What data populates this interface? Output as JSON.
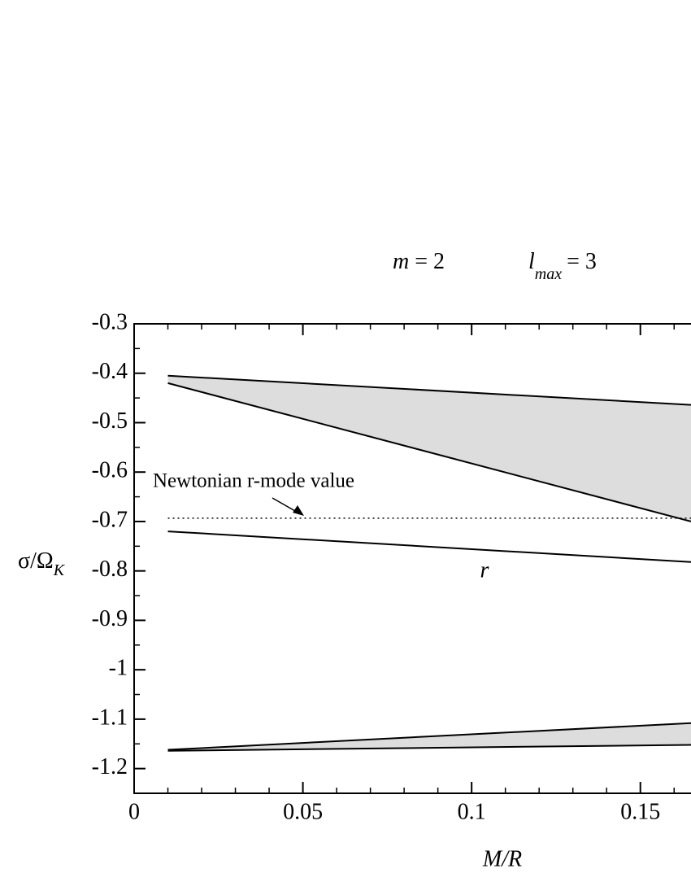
{
  "chart_data": {
    "type": "line",
    "title": [
      "m",
      "= 2",
      "l",
      "max",
      "= 3"
    ],
    "xlabel": "M/R",
    "ylabel": [
      "σ/Ω",
      "K"
    ],
    "xlim": [
      0,
      0.165
    ],
    "ylim": [
      -1.25,
      -0.3
    ],
    "xticks": [
      0,
      0.05,
      0.1,
      0.15
    ],
    "xticks_minor": [
      0.01,
      0.02,
      0.03,
      0.04,
      0.06,
      0.07,
      0.08,
      0.09,
      0.11,
      0.12,
      0.13,
      0.14,
      0.16
    ],
    "yticks": [
      -0.3,
      -0.4,
      -0.5,
      -0.6,
      -0.7,
      -0.8,
      -0.9,
      -1,
      -1.1,
      -1.2
    ],
    "yticks_minor": [
      -0.35,
      -0.45,
      -0.55,
      -0.65,
      -0.75,
      -0.85,
      -0.95,
      -1.05,
      -1.15,
      -1.25
    ],
    "x": [
      0.01,
      0.165
    ],
    "bands": [
      {
        "color": "#dddddd",
        "upper": [
          -0.405,
          -0.464
        ],
        "lower": [
          -0.42,
          -0.7
        ]
      },
      {
        "color": "#dddddd",
        "upper": [
          -1.162,
          -1.108
        ],
        "lower": [
          -1.164,
          -1.152
        ]
      }
    ],
    "series": [
      {
        "name": "r",
        "color": "#000000",
        "values": [
          -0.72,
          -0.782
        ]
      }
    ],
    "reference_line": {
      "value": -0.6933,
      "label": "Newtonian r-mode value"
    }
  }
}
